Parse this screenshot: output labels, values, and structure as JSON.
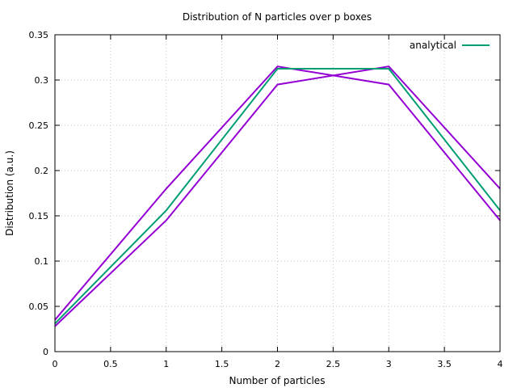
{
  "chart_data": {
    "type": "line",
    "title": "Distribution of N particles over p boxes",
    "xlabel": "Number of particles",
    "ylabel": "Distribution (a.u.)",
    "xlim": [
      0,
      4
    ],
    "ylim": [
      0,
      0.35
    ],
    "xticks": [
      "0",
      "0.5",
      "1",
      "1.5",
      "2",
      "2.5",
      "3",
      "3.5",
      "4"
    ],
    "yticks": [
      "0",
      "0.05",
      "0.1",
      "0.15",
      "0.2",
      "0.25",
      "0.3",
      "0.35"
    ],
    "grid": true,
    "legend": {
      "placement": "top-right"
    },
    "series": [
      {
        "name": "analytical",
        "color": "#009e73",
        "in_legend": true,
        "x": [
          0,
          1,
          2,
          3,
          4
        ],
        "y": [
          0.031,
          0.156,
          0.3125,
          0.3125,
          0.156
        ]
      },
      {
        "name": "",
        "color": "#9400d3",
        "in_legend": false,
        "x": [
          0,
          1,
          2,
          3,
          4
        ],
        "y": [
          0.035,
          0.18,
          0.315,
          0.295,
          0.145
        ]
      },
      {
        "name": "",
        "color": "#9400d3",
        "in_legend": false,
        "x": [
          0,
          1,
          2,
          3,
          4
        ],
        "y": [
          0.028,
          0.145,
          0.295,
          0.315,
          0.18
        ]
      }
    ]
  }
}
